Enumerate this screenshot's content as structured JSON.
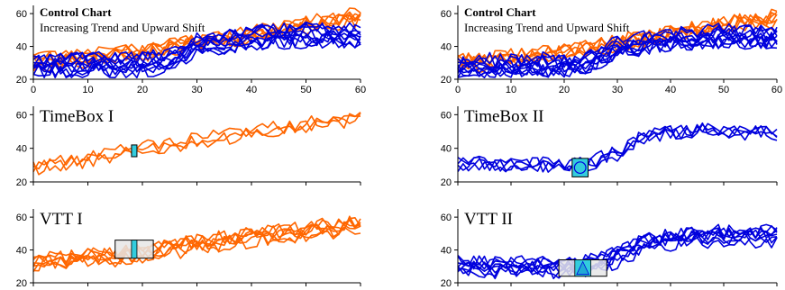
{
  "colors": {
    "orange": "#FF6600",
    "blue": "#0000DD",
    "box_fill": "#E6E6E6",
    "cyan": "#33CCDD"
  },
  "chart_data": [
    {
      "id": "cc1",
      "type": "line",
      "title": "Control Chart",
      "subtitle": "Increasing Trend and Upward Shift",
      "xlim": [
        0,
        60
      ],
      "ylim": [
        20,
        65
      ],
      "xticks": [
        0,
        10,
        20,
        30,
        40,
        50,
        60
      ],
      "yticks": [
        20,
        40,
        60
      ],
      "series": [
        {
          "kind": "trend",
          "color": "orange",
          "count": 6,
          "points": [
            [
              0,
              30
            ],
            [
              10,
              33
            ],
            [
              20,
              36
            ],
            [
              30,
              42
            ],
            [
              40,
              47
            ],
            [
              50,
              53
            ],
            [
              60,
              58
            ]
          ]
        },
        {
          "kind": "shift",
          "color": "blue",
          "count": 10,
          "points": [
            [
              0,
              28
            ],
            [
              10,
              29
            ],
            [
              20,
              29
            ],
            [
              25,
              31
            ],
            [
              30,
              40
            ],
            [
              40,
              45
            ],
            [
              50,
              47
            ],
            [
              60,
              46
            ]
          ]
        }
      ]
    },
    {
      "id": "cc2",
      "type": "line",
      "title": "Control Chart",
      "subtitle": "Increasing Trend and Upward Shift",
      "xlim": [
        0,
        60
      ],
      "ylim": [
        20,
        65
      ],
      "xticks": [
        0,
        10,
        20,
        30,
        40,
        50,
        60
      ],
      "yticks": [
        20,
        40,
        60
      ],
      "series": [
        {
          "kind": "trend",
          "color": "orange",
          "count": 6,
          "points": [
            [
              0,
              30
            ],
            [
              10,
              33
            ],
            [
              20,
              36
            ],
            [
              30,
              42
            ],
            [
              40,
              47
            ],
            [
              50,
              53
            ],
            [
              60,
              58
            ]
          ]
        },
        {
          "kind": "shift",
          "color": "blue",
          "count": 10,
          "points": [
            [
              0,
              28
            ],
            [
              10,
              29
            ],
            [
              20,
              29
            ],
            [
              25,
              31
            ],
            [
              30,
              40
            ],
            [
              40,
              45
            ],
            [
              50,
              47
            ],
            [
              60,
              46
            ]
          ]
        }
      ]
    },
    {
      "id": "tb1",
      "type": "line",
      "title": "TimeBox I",
      "xlim": [
        0,
        60
      ],
      "ylim": [
        20,
        65
      ],
      "yticks": [
        20,
        40,
        60
      ],
      "series": [
        {
          "kind": "trend",
          "color": "orange",
          "count": 3,
          "points": [
            [
              0,
              27
            ],
            [
              10,
              32
            ],
            [
              20,
              37
            ],
            [
              30,
              42
            ],
            [
              40,
              47
            ],
            [
              50,
              52
            ],
            [
              60,
              56
            ]
          ]
        }
      ],
      "box": {
        "x": [
          18,
          19
        ],
        "y": [
          35,
          42
        ],
        "fill": "cyan"
      }
    },
    {
      "id": "tb2",
      "type": "line",
      "title": "TimeBox II",
      "xlim": [
        0,
        60
      ],
      "ylim": [
        20,
        65
      ],
      "yticks": [
        20,
        40,
        60
      ],
      "series": [
        {
          "kind": "shift",
          "color": "blue",
          "count": 4,
          "points": [
            [
              0,
              30
            ],
            [
              10,
              29
            ],
            [
              20,
              29
            ],
            [
              25,
              30
            ],
            [
              30,
              36
            ],
            [
              35,
              46
            ],
            [
              45,
              50
            ],
            [
              60,
              48
            ]
          ]
        }
      ],
      "box": {
        "x": [
          21.5,
          24.5
        ],
        "y": [
          23,
          34
        ],
        "fill": "cyan",
        "circle": true
      }
    },
    {
      "id": "vtt1",
      "type": "line",
      "title": "VTT I",
      "xlim": [
        0,
        60
      ],
      "ylim": [
        20,
        65
      ],
      "yticks": [
        20,
        40,
        60
      ],
      "series": [
        {
          "kind": "trend",
          "color": "orange",
          "count": 7,
          "points": [
            [
              0,
              31
            ],
            [
              10,
              34
            ],
            [
              20,
              37
            ],
            [
              30,
              43
            ],
            [
              40,
              47
            ],
            [
              50,
              51
            ],
            [
              60,
              55
            ]
          ]
        }
      ],
      "box": {
        "x": [
          15,
          22
        ],
        "y": [
          35,
          46
        ],
        "fill": "box_fill",
        "inner": {
          "x": [
            18,
            19
          ],
          "y": [
            35,
            46
          ]
        }
      }
    },
    {
      "id": "vtt2",
      "type": "line",
      "title": "VTT II",
      "xlim": [
        0,
        60
      ],
      "ylim": [
        20,
        65
      ],
      "yticks": [
        20,
        40,
        60
      ],
      "series": [
        {
          "kind": "shift",
          "color": "blue",
          "count": 8,
          "points": [
            [
              0,
              30
            ],
            [
              10,
              29
            ],
            [
              20,
              29
            ],
            [
              25,
              31
            ],
            [
              30,
              36
            ],
            [
              35,
              44
            ],
            [
              45,
              48
            ],
            [
              60,
              48
            ]
          ]
        }
      ],
      "box": {
        "x": [
          19,
          28
        ],
        "y": [
          24,
          34
        ],
        "fill": "box_fill",
        "inner": {
          "x": [
            22,
            25
          ],
          "y": [
            24,
            34
          ],
          "circle": true
        }
      }
    }
  ]
}
